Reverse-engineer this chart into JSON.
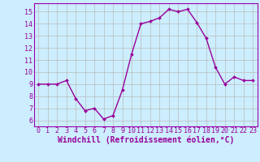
{
  "x": [
    0,
    1,
    2,
    3,
    4,
    5,
    6,
    7,
    8,
    9,
    10,
    11,
    12,
    13,
    14,
    15,
    16,
    17,
    18,
    19,
    20,
    21,
    22,
    23
  ],
  "y": [
    9.0,
    9.0,
    9.0,
    9.3,
    7.8,
    6.8,
    7.0,
    6.1,
    6.4,
    8.5,
    11.5,
    14.0,
    14.2,
    14.5,
    15.2,
    15.0,
    15.2,
    14.1,
    12.8,
    10.4,
    9.0,
    9.6,
    9.3,
    9.3
  ],
  "line_color": "#990099",
  "marker": "D",
  "marker_size": 2.0,
  "line_width": 1.0,
  "xlabel": "Windchill (Refroidissement éolien,°C)",
  "xlabel_fontsize": 7,
  "bg_color": "#cceeff",
  "grid_color": "#bbbbbb",
  "xlim": [
    -0.5,
    23.5
  ],
  "ylim": [
    5.5,
    15.7
  ],
  "yticks": [
    6,
    7,
    8,
    9,
    10,
    11,
    12,
    13,
    14,
    15
  ],
  "xticks": [
    0,
    1,
    2,
    3,
    4,
    5,
    6,
    7,
    8,
    9,
    10,
    11,
    12,
    13,
    14,
    15,
    16,
    17,
    18,
    19,
    20,
    21,
    22,
    23
  ],
  "tick_fontsize": 6,
  "spine_color": "#9900aa",
  "xlabel_color": "#990099"
}
